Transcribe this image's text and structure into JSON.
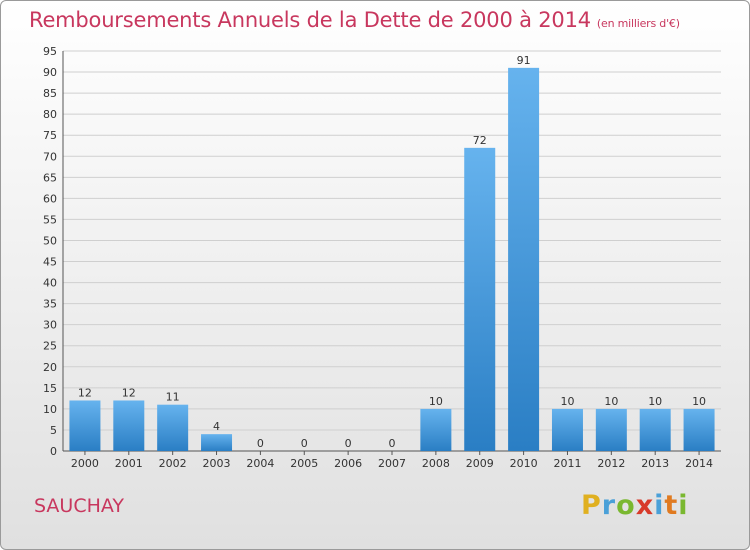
{
  "title": "Remboursements Annuels de la Dette de 2000 à 2014",
  "subtitle": "(en milliers d'€)",
  "commune": "SAUCHAY",
  "logo_text": "Proxiti",
  "colors": {
    "title": "#c8375e",
    "bar_light": "#66b3ee",
    "bar_dark": "#2a7ec4"
  },
  "chart_data": {
    "type": "bar",
    "categories": [
      "2000",
      "2001",
      "2002",
      "2003",
      "2004",
      "2005",
      "2006",
      "2007",
      "2008",
      "2009",
      "2010",
      "2011",
      "2012",
      "2013",
      "2014"
    ],
    "values": [
      12,
      12,
      11,
      4,
      0,
      0,
      0,
      0,
      10,
      72,
      91,
      10,
      10,
      10,
      10
    ],
    "ylim": [
      0,
      95
    ],
    "yticks": [
      0,
      5,
      10,
      15,
      20,
      25,
      30,
      35,
      40,
      45,
      50,
      55,
      60,
      65,
      70,
      75,
      80,
      85,
      90,
      95
    ],
    "grid": true,
    "data_labels": true
  }
}
